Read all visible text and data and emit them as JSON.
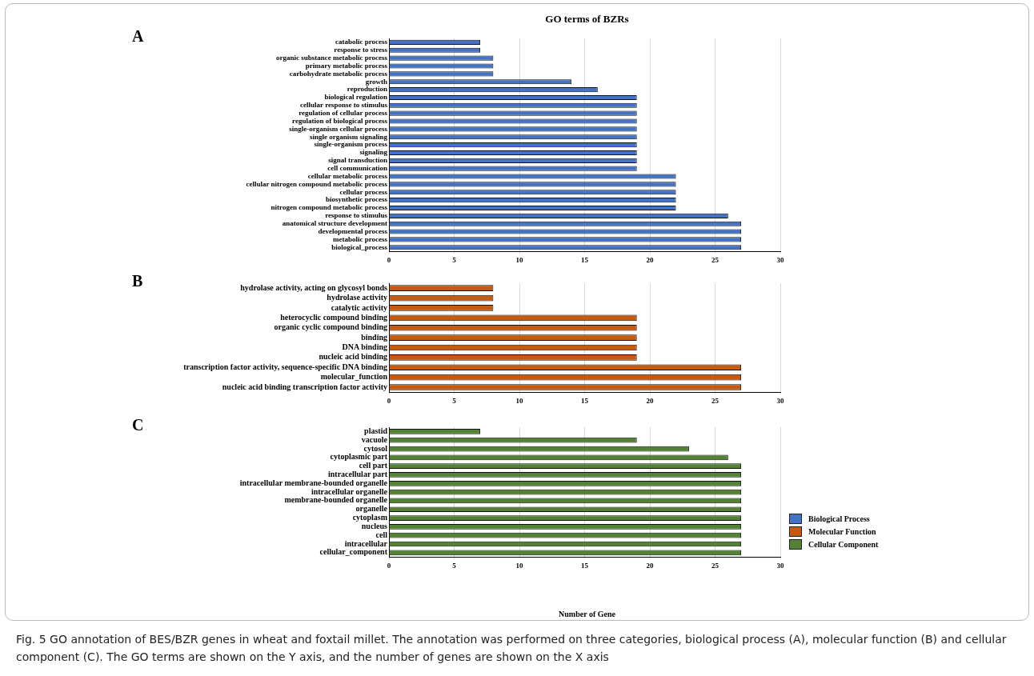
{
  "chart_data": [
    {
      "type": "bar",
      "orientation": "horizontal",
      "title": "GO terms of BZRs",
      "annotations": [
        "A"
      ],
      "categories": [
        "catabolic process",
        "response to stress",
        "organic substance metabolic process",
        "primary metabolic process",
        "carbohydrate metabolic process",
        "growth",
        "reproduction",
        "biological regulation",
        "cellular response to stimulus",
        "regulation of cellular process",
        "regulation of biological process",
        "single-organism cellular process",
        "single organism signaling",
        "single-organism process",
        "signaling",
        "signal transduction",
        "cell communication",
        "cellular metabolic process",
        "cellular nitrogen compound metabolic process",
        "cellular process",
        "biosynthetic process",
        "nitrogen compound metabolic process",
        "response to stimulus",
        "anatomical structure development",
        "developmental process",
        "metabolic process",
        "biological_process"
      ],
      "series": [
        {
          "name": "Biological Process",
          "color": "#4472c4",
          "values": [
            7,
            7,
            8,
            8,
            8,
            14,
            16,
            19,
            19,
            19,
            19,
            19,
            19,
            19,
            19,
            19,
            19,
            22,
            22,
            22,
            22,
            22,
            26,
            27,
            27,
            27,
            27
          ]
        }
      ],
      "xlim": [
        0,
        30
      ],
      "xticks": [
        0,
        5,
        10,
        15,
        20,
        25,
        30
      ],
      "grid": "x"
    },
    {
      "type": "bar",
      "orientation": "horizontal",
      "annotations": [
        "B"
      ],
      "categories": [
        "hydrolase activity, acting on glycosyl bonds",
        "hydrolase activity",
        "catalytic activity",
        "heterocyclic compound binding",
        "organic cyclic compound binding",
        "binding",
        "DNA binding",
        "nucleic acid binding",
        "transcription factor activity, sequence-specific DNA binding",
        "molecular_function",
        "nucleic acid binding transcription factor activity"
      ],
      "series": [
        {
          "name": "Molecular Function",
          "color": "#c55a11",
          "values": [
            8,
            8,
            8,
            19,
            19,
            19,
            19,
            19,
            27,
            27,
            27
          ]
        }
      ],
      "xlim": [
        0,
        30
      ],
      "xticks": [
        0,
        5,
        10,
        15,
        20,
        25,
        30
      ],
      "grid": "x"
    },
    {
      "type": "bar",
      "orientation": "horizontal",
      "xlabel": "Number of Gene",
      "annotations": [
        "C",
        "Fig. 5 GO annotation of BES/BZR genes in wheat and foxtail millet. The annotation was performed on three categories, biological process (A), molecular function (B) and cellular component (C). The GO terms are shown on the Y axis, and the number of genes are shown on the X axis"
      ],
      "categories": [
        "plastid",
        "vacuole",
        "cytosol",
        "cytoplasmic part",
        "cell part",
        "intracellular part",
        "intracellular membrane-bounded organelle",
        "intracellular organelle",
        "membrane-bounded organelle",
        "organelle",
        "cytoplasm",
        "nucleus",
        "cell",
        "intracellular",
        "cellular_component"
      ],
      "series": [
        {
          "name": "Cellular Component",
          "color": "#548235",
          "values": [
            7,
            19,
            23,
            26,
            27,
            27,
            27,
            27,
            27,
            27,
            27,
            27,
            27,
            27,
            27
          ]
        }
      ],
      "xlim": [
        0,
        30
      ],
      "xticks": [
        0,
        5,
        10,
        15,
        20,
        25,
        30
      ],
      "grid": "x",
      "legend": "right"
    }
  ]
}
